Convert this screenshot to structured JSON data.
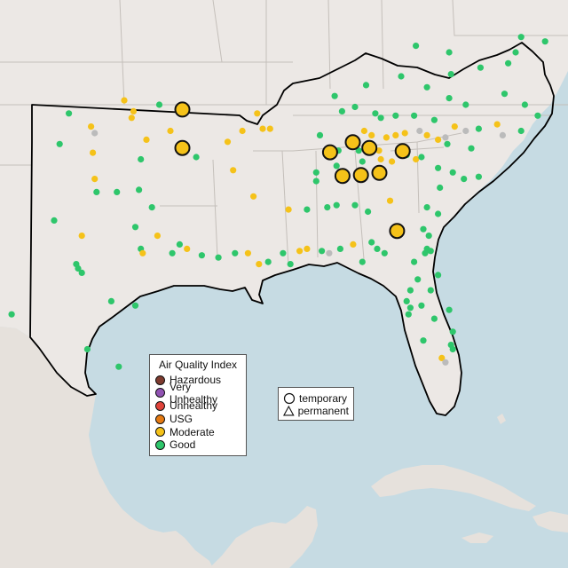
{
  "colors": {
    "water": "#c6dbe3",
    "land": "#ece8e5",
    "terrain": "#e6e1dc",
    "state_border": "#bdb8b3",
    "region_outline": "#000000"
  },
  "legend": {
    "title": "Air Quality Index",
    "items": [
      {
        "label": "Hazardous",
        "color": "#7e3b2f"
      },
      {
        "label": "Very Unhealthy",
        "color": "#9153b3"
      },
      {
        "label": "Unhealthy",
        "color": "#e0433a"
      },
      {
        "label": "USG",
        "color": "#e57a12"
      },
      {
        "label": "Moderate",
        "color": "#f5c219"
      },
      {
        "label": "Good",
        "color": "#2ec66b"
      }
    ]
  },
  "shape_legend": {
    "items": [
      {
        "label": "temporary",
        "shape": "circle-icon"
      },
      {
        "label": "permanent",
        "shape": "triangle-icon"
      }
    ]
  },
  "no_data_color": "#bbbbbb",
  "monitors": {
    "large": [
      {
        "lon": -94.85,
        "lat": 36.78,
        "aqi": "Moderate"
      },
      {
        "lon": -94.85,
        "lat": 35.02,
        "aqi": "Moderate"
      },
      {
        "lon": -86.85,
        "lat": 34.82,
        "aqi": "Moderate"
      },
      {
        "lon": -85.62,
        "lat": 35.28,
        "aqi": "Moderate"
      },
      {
        "lon": -84.72,
        "lat": 35.02,
        "aqi": "Moderate"
      },
      {
        "lon": -82.92,
        "lat": 34.88,
        "aqi": "Moderate"
      },
      {
        "lon": -86.18,
        "lat": 33.74,
        "aqi": "Moderate"
      },
      {
        "lon": -85.18,
        "lat": 33.78,
        "aqi": "Moderate"
      },
      {
        "lon": -84.18,
        "lat": 33.88,
        "aqi": "Moderate"
      },
      {
        "lon": -83.22,
        "lat": 31.22,
        "aqi": "Moderate"
      }
    ],
    "small": [
      {
        "lon": -101.0,
        "lat": 36.6,
        "aqi": "Good"
      },
      {
        "lon": -98.0,
        "lat": 37.2,
        "aqi": "Moderate"
      },
      {
        "lon": -96.1,
        "lat": 37.0,
        "aqi": "Good"
      },
      {
        "lon": -97.5,
        "lat": 36.7,
        "aqi": "Moderate"
      },
      {
        "lon": -97.6,
        "lat": 36.4,
        "aqi": "Moderate"
      },
      {
        "lon": -99.8,
        "lat": 36.0,
        "aqi": "Moderate"
      },
      {
        "lon": -99.6,
        "lat": 35.7,
        "aqi": "No Data"
      },
      {
        "lon": -96.8,
        "lat": 35.4,
        "aqi": "Moderate"
      },
      {
        "lon": -95.5,
        "lat": 35.8,
        "aqi": "Moderate"
      },
      {
        "lon": -101.5,
        "lat": 35.2,
        "aqi": "Good"
      },
      {
        "lon": -99.7,
        "lat": 34.8,
        "aqi": "Moderate"
      },
      {
        "lon": -97.1,
        "lat": 34.5,
        "aqi": "Good"
      },
      {
        "lon": -99.6,
        "lat": 33.6,
        "aqi": "Moderate"
      },
      {
        "lon": -99.5,
        "lat": 33.0,
        "aqi": "Good"
      },
      {
        "lon": -98.4,
        "lat": 33.0,
        "aqi": "Good"
      },
      {
        "lon": -97.2,
        "lat": 33.1,
        "aqi": "Good"
      },
      {
        "lon": -96.5,
        "lat": 32.3,
        "aqi": "Good"
      },
      {
        "lon": -101.8,
        "lat": 31.7,
        "aqi": "Good"
      },
      {
        "lon": -100.3,
        "lat": 31.0,
        "aqi": "Moderate"
      },
      {
        "lon": -97.4,
        "lat": 31.4,
        "aqi": "Good"
      },
      {
        "lon": -96.2,
        "lat": 31.0,
        "aqi": "Moderate"
      },
      {
        "lon": -97.1,
        "lat": 30.4,
        "aqi": "Good"
      },
      {
        "lon": -97.0,
        "lat": 30.2,
        "aqi": "Moderate"
      },
      {
        "lon": -95.4,
        "lat": 30.2,
        "aqi": "Good"
      },
      {
        "lon": -94.6,
        "lat": 30.4,
        "aqi": "Moderate"
      },
      {
        "lon": -95.0,
        "lat": 30.6,
        "aqi": "Good"
      },
      {
        "lon": -100.5,
        "lat": 29.5,
        "aqi": "Good"
      },
      {
        "lon": -100.3,
        "lat": 29.3,
        "aqi": "Good"
      },
      {
        "lon": -100.6,
        "lat": 29.7,
        "aqi": "Good"
      },
      {
        "lon": -98.7,
        "lat": 28.0,
        "aqi": "Good"
      },
      {
        "lon": -97.4,
        "lat": 27.8,
        "aqi": "Good"
      },
      {
        "lon": -104.1,
        "lat": 27.4,
        "aqi": "Good"
      },
      {
        "lon": -100.0,
        "lat": 25.8,
        "aqi": "Good"
      },
      {
        "lon": -98.3,
        "lat": 25.0,
        "aqi": "Good"
      },
      {
        "lon": -94.1,
        "lat": 34.6,
        "aqi": "Good"
      },
      {
        "lon": -92.4,
        "lat": 35.3,
        "aqi": "Moderate"
      },
      {
        "lon": -91.6,
        "lat": 35.8,
        "aqi": "Moderate"
      },
      {
        "lon": -90.8,
        "lat": 36.6,
        "aqi": "Moderate"
      },
      {
        "lon": -90.5,
        "lat": 35.9,
        "aqi": "Moderate"
      },
      {
        "lon": -90.1,
        "lat": 35.9,
        "aqi": "Moderate"
      },
      {
        "lon": -87.4,
        "lat": 35.6,
        "aqi": "Good"
      },
      {
        "lon": -92.1,
        "lat": 34.0,
        "aqi": "Moderate"
      },
      {
        "lon": -91.0,
        "lat": 32.8,
        "aqi": "Moderate"
      },
      {
        "lon": -89.1,
        "lat": 32.2,
        "aqi": "Moderate"
      },
      {
        "lon": -87.6,
        "lat": 33.5,
        "aqi": "Good"
      },
      {
        "lon": -88.1,
        "lat": 32.2,
        "aqi": "Good"
      },
      {
        "lon": -93.8,
        "lat": 30.1,
        "aqi": "Good"
      },
      {
        "lon": -92.9,
        "lat": 30.0,
        "aqi": "Good"
      },
      {
        "lon": -92.0,
        "lat": 30.2,
        "aqi": "Good"
      },
      {
        "lon": -91.3,
        "lat": 30.2,
        "aqi": "Moderate"
      },
      {
        "lon": -90.7,
        "lat": 29.7,
        "aqi": "Moderate"
      },
      {
        "lon": -90.2,
        "lat": 29.8,
        "aqi": "Good"
      },
      {
        "lon": -89.4,
        "lat": 30.2,
        "aqi": "Good"
      },
      {
        "lon": -89.0,
        "lat": 29.7,
        "aqi": "Good"
      },
      {
        "lon": -88.5,
        "lat": 30.3,
        "aqi": "Moderate"
      },
      {
        "lon": -88.1,
        "lat": 30.4,
        "aqi": "Moderate"
      },
      {
        "lon": -87.3,
        "lat": 30.3,
        "aqi": "Good"
      },
      {
        "lon": -86.9,
        "lat": 30.2,
        "aqi": "No Data"
      },
      {
        "lon": -85.6,
        "lat": 30.6,
        "aqi": "Moderate"
      },
      {
        "lon": -86.3,
        "lat": 30.4,
        "aqi": "Good"
      },
      {
        "lon": -84.6,
        "lat": 30.7,
        "aqi": "Good"
      },
      {
        "lon": -84.3,
        "lat": 30.4,
        "aqi": "Good"
      },
      {
        "lon": -83.9,
        "lat": 30.2,
        "aqi": "Good"
      },
      {
        "lon": -85.1,
        "lat": 29.8,
        "aqi": "Good"
      },
      {
        "lon": -86.6,
        "lat": 37.4,
        "aqi": "Good"
      },
      {
        "lon": -86.2,
        "lat": 36.7,
        "aqi": "Good"
      },
      {
        "lon": -85.5,
        "lat": 36.9,
        "aqi": "Good"
      },
      {
        "lon": -84.4,
        "lat": 36.6,
        "aqi": "Good"
      },
      {
        "lon": -84.1,
        "lat": 36.4,
        "aqi": "Good"
      },
      {
        "lon": -83.3,
        "lat": 36.5,
        "aqi": "Good"
      },
      {
        "lon": -82.3,
        "lat": 36.5,
        "aqi": "Good"
      },
      {
        "lon": -81.2,
        "lat": 36.3,
        "aqi": "Good"
      },
      {
        "lon": -80.1,
        "lat": 36.0,
        "aqi": "Moderate"
      },
      {
        "lon": -79.5,
        "lat": 35.8,
        "aqi": "No Data"
      },
      {
        "lon": -78.8,
        "lat": 35.9,
        "aqi": "Good"
      },
      {
        "lon": -77.5,
        "lat": 35.6,
        "aqi": "No Data"
      },
      {
        "lon": -77.8,
        "lat": 36.1,
        "aqi": "Moderate"
      },
      {
        "lon": -76.5,
        "lat": 35.8,
        "aqi": "Good"
      },
      {
        "lon": -75.6,
        "lat": 36.5,
        "aqi": "Good"
      },
      {
        "lon": -85.0,
        "lat": 35.8,
        "aqi": "Moderate"
      },
      {
        "lon": -84.6,
        "lat": 35.6,
        "aqi": "Moderate"
      },
      {
        "lon": -83.8,
        "lat": 35.5,
        "aqi": "Moderate"
      },
      {
        "lon": -83.3,
        "lat": 35.6,
        "aqi": "Moderate"
      },
      {
        "lon": -82.8,
        "lat": 35.7,
        "aqi": "Moderate"
      },
      {
        "lon": -82.0,
        "lat": 35.8,
        "aqi": "No Data"
      },
      {
        "lon": -81.6,
        "lat": 35.6,
        "aqi": "Moderate"
      },
      {
        "lon": -81.0,
        "lat": 35.4,
        "aqi": "Moderate"
      },
      {
        "lon": -80.6,
        "lat": 35.5,
        "aqi": "No Data"
      },
      {
        "lon": -80.5,
        "lat": 35.2,
        "aqi": "Good"
      },
      {
        "lon": -79.2,
        "lat": 35.0,
        "aqi": "Good"
      },
      {
        "lon": -84.9,
        "lat": 35.1,
        "aqi": "Good"
      },
      {
        "lon": -85.3,
        "lat": 34.9,
        "aqi": "Good"
      },
      {
        "lon": -84.2,
        "lat": 34.9,
        "aqi": "Moderate"
      },
      {
        "lon": -84.1,
        "lat": 34.5,
        "aqi": "Moderate"
      },
      {
        "lon": -83.5,
        "lat": 34.4,
        "aqi": "Moderate"
      },
      {
        "lon": -82.7,
        "lat": 34.7,
        "aqi": "Good"
      },
      {
        "lon": -82.2,
        "lat": 34.5,
        "aqi": "Moderate"
      },
      {
        "lon": -81.9,
        "lat": 34.6,
        "aqi": "Good"
      },
      {
        "lon": -81.0,
        "lat": 34.1,
        "aqi": "Good"
      },
      {
        "lon": -80.2,
        "lat": 33.9,
        "aqi": "Good"
      },
      {
        "lon": -80.9,
        "lat": 33.2,
        "aqi": "Good"
      },
      {
        "lon": -79.6,
        "lat": 33.6,
        "aqi": "Good"
      },
      {
        "lon": -78.8,
        "lat": 33.7,
        "aqi": "Good"
      },
      {
        "lon": -86.4,
        "lat": 34.9,
        "aqi": "Good"
      },
      {
        "lon": -87.6,
        "lat": 33.9,
        "aqi": "Good"
      },
      {
        "lon": -86.5,
        "lat": 34.2,
        "aqi": "Good"
      },
      {
        "lon": -85.1,
        "lat": 34.4,
        "aqi": "Good"
      },
      {
        "lon": -87.0,
        "lat": 32.3,
        "aqi": "Good"
      },
      {
        "lon": -86.5,
        "lat": 32.4,
        "aqi": "Good"
      },
      {
        "lon": -85.5,
        "lat": 32.4,
        "aqi": "Good"
      },
      {
        "lon": -84.8,
        "lat": 32.1,
        "aqi": "Good"
      },
      {
        "lon": -83.6,
        "lat": 32.6,
        "aqi": "Moderate"
      },
      {
        "lon": -81.6,
        "lat": 32.3,
        "aqi": "Good"
      },
      {
        "lon": -81.0,
        "lat": 32.0,
        "aqi": "Good"
      },
      {
        "lon": -81.8,
        "lat": 31.3,
        "aqi": "Good"
      },
      {
        "lon": -81.5,
        "lat": 31.0,
        "aqi": "Good"
      },
      {
        "lon": -81.6,
        "lat": 30.4,
        "aqi": "Good"
      },
      {
        "lon": -81.7,
        "lat": 30.2,
        "aqi": "Good"
      },
      {
        "lon": -81.4,
        "lat": 30.3,
        "aqi": "Good"
      },
      {
        "lon": -82.3,
        "lat": 29.8,
        "aqi": "Good"
      },
      {
        "lon": -81.0,
        "lat": 29.2,
        "aqi": "Good"
      },
      {
        "lon": -82.1,
        "lat": 29.0,
        "aqi": "Good"
      },
      {
        "lon": -82.5,
        "lat": 28.5,
        "aqi": "Good"
      },
      {
        "lon": -81.4,
        "lat": 28.5,
        "aqi": "Good"
      },
      {
        "lon": -82.7,
        "lat": 28.0,
        "aqi": "Good"
      },
      {
        "lon": -82.5,
        "lat": 27.7,
        "aqi": "Good"
      },
      {
        "lon": -82.6,
        "lat": 27.4,
        "aqi": "Good"
      },
      {
        "lon": -81.9,
        "lat": 27.8,
        "aqi": "Good"
      },
      {
        "lon": -81.2,
        "lat": 27.2,
        "aqi": "Good"
      },
      {
        "lon": -80.4,
        "lat": 27.6,
        "aqi": "Good"
      },
      {
        "lon": -80.2,
        "lat": 26.6,
        "aqi": "Good"
      },
      {
        "lon": -80.3,
        "lat": 26.0,
        "aqi": "Good"
      },
      {
        "lon": -80.2,
        "lat": 25.8,
        "aqi": "Good"
      },
      {
        "lon": -81.8,
        "lat": 26.2,
        "aqi": "Good"
      },
      {
        "lon": -80.8,
        "lat": 25.4,
        "aqi": "Moderate"
      },
      {
        "lon": -80.6,
        "lat": 25.2,
        "aqi": "No Data"
      },
      {
        "lon": -84.9,
        "lat": 37.9,
        "aqi": "Good"
      },
      {
        "lon": -83.0,
        "lat": 38.3,
        "aqi": "Good"
      },
      {
        "lon": -81.6,
        "lat": 37.8,
        "aqi": "Good"
      },
      {
        "lon": -80.4,
        "lat": 37.3,
        "aqi": "Good"
      },
      {
        "lon": -79.5,
        "lat": 37.0,
        "aqi": "Good"
      },
      {
        "lon": -77.4,
        "lat": 37.5,
        "aqi": "Good"
      },
      {
        "lon": -76.3,
        "lat": 37.0,
        "aqi": "Good"
      },
      {
        "lon": -80.3,
        "lat": 38.4,
        "aqi": "Good"
      },
      {
        "lon": -78.7,
        "lat": 38.7,
        "aqi": "Good"
      },
      {
        "lon": -77.2,
        "lat": 38.9,
        "aqi": "Good"
      },
      {
        "lon": -76.8,
        "lat": 39.4,
        "aqi": "Good"
      },
      {
        "lon": -82.2,
        "lat": 39.7,
        "aqi": "Good"
      },
      {
        "lon": -80.4,
        "lat": 39.4,
        "aqi": "Good"
      },
      {
        "lon": -76.5,
        "lat": 40.1,
        "aqi": "Good"
      },
      {
        "lon": -75.2,
        "lat": 39.9,
        "aqi": "Good"
      }
    ]
  }
}
